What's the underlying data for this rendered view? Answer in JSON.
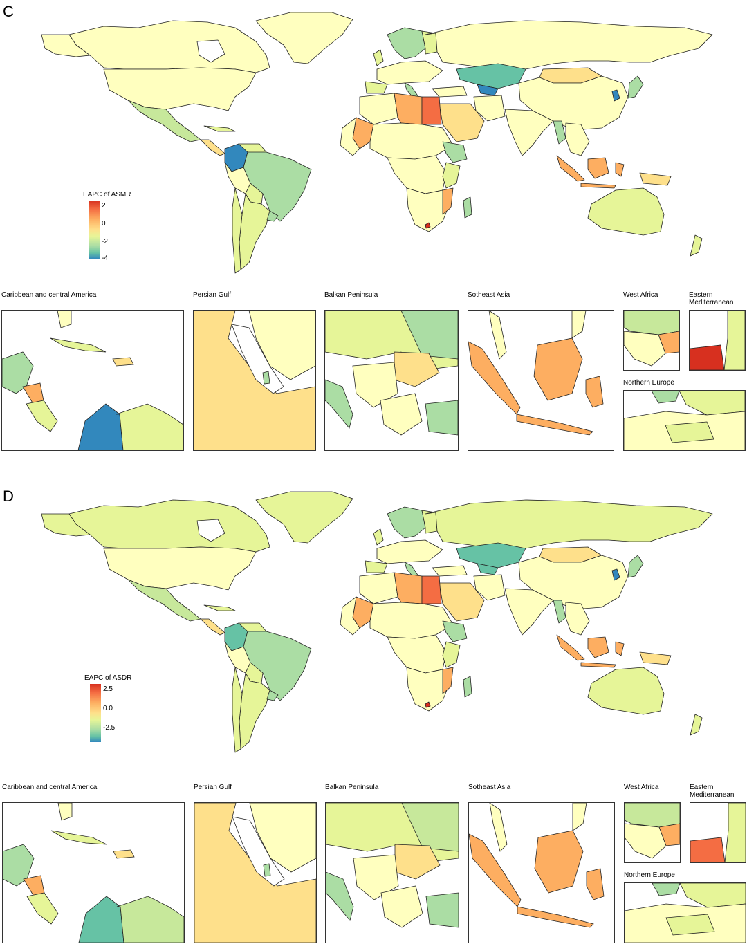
{
  "panels": [
    {
      "letter": "C",
      "legend": {
        "title": "EAPC of ASMR",
        "ticks": [
          "2",
          "0",
          "-2",
          "-4"
        ]
      },
      "insets": {
        "caribbean": "Caribbean and central America",
        "persian_gulf": "Persian Gulf",
        "balkan": "Balkan Peninsula",
        "se_asia": "Sotheast Asia",
        "west_africa": "West Africa",
        "east_med": "Eastern Mediterranean",
        "northern_europe": "Northern Europe"
      }
    },
    {
      "letter": "D",
      "legend": {
        "title": "EAPC of ASDR",
        "ticks": [
          "2.5",
          "0.0",
          "-2.5"
        ]
      },
      "insets": {
        "caribbean": "Caribbean and central America",
        "persian_gulf": "Persian Gulf",
        "balkan": "Balkan Peninsula",
        "se_asia": "Sotheast Asia",
        "west_africa": "West Africa",
        "east_med": "Eastern Mediterranean",
        "northern_europe": "Northern Europe"
      }
    }
  ],
  "colors": {
    "red": "#d7301f",
    "orange": "#f46d43",
    "light_orange": "#fdae61",
    "yellow": "#fee08b",
    "pale_yellow": "#ffffbf",
    "yellow_green": "#e6f598",
    "light_green": "#c7e89b",
    "green": "#abdda4",
    "teal": "#66c2a5",
    "blue": "#3288bd",
    "border": "#222222",
    "water": "#ffffff"
  }
}
